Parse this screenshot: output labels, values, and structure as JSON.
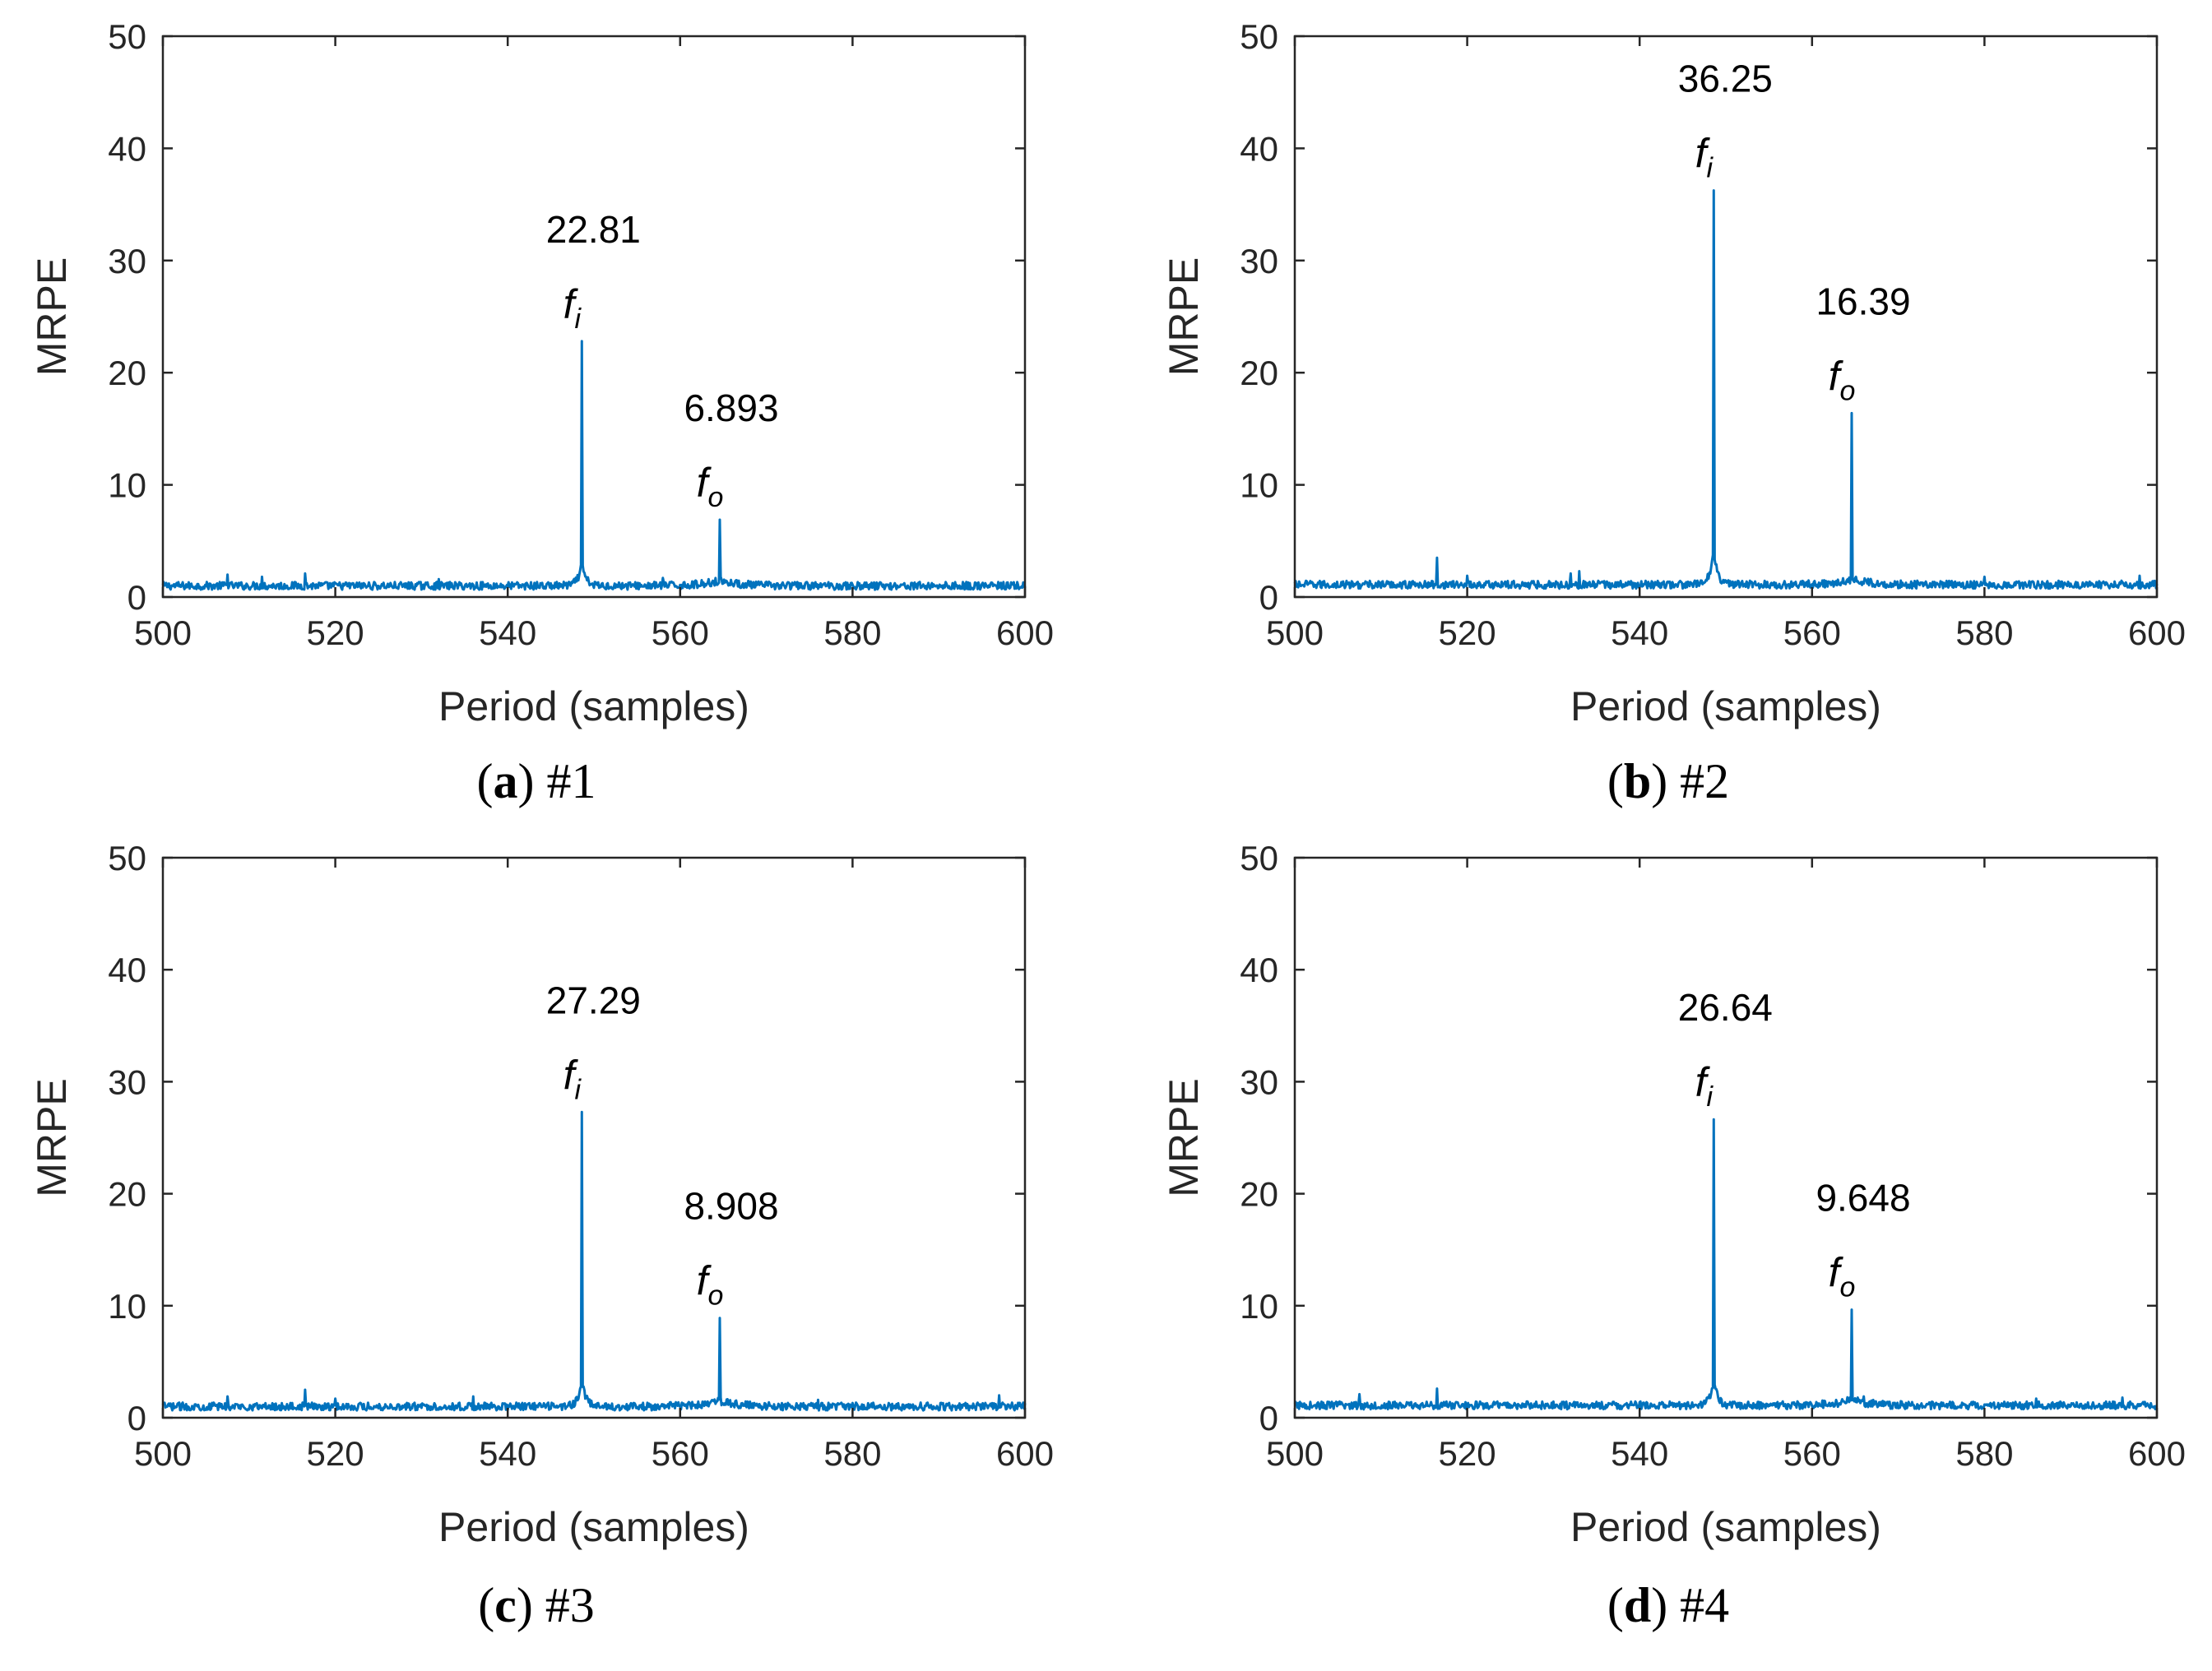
{
  "colors": {
    "series": "#0072BD",
    "axis": "#262626"
  },
  "chart_data": [
    {
      "type": "line",
      "caption_letter": "a",
      "caption_text": "#1",
      "xlabel": "Period (samples)",
      "ylabel": "MRPE",
      "xlim": [
        500,
        600
      ],
      "ylim": [
        0,
        50
      ],
      "xticks": [
        "500",
        "520",
        "540",
        "560",
        "580",
        "600"
      ],
      "yticks": [
        "0",
        "10",
        "20",
        "30",
        "40",
        "50"
      ],
      "baseline": 1.0,
      "fi": {
        "x": 548.6,
        "y": 22.81,
        "label": "22.81",
        "symbol": "f",
        "sub": "i"
      },
      "fo": {
        "x": 564.6,
        "y": 6.893,
        "label": "6.893",
        "symbol": "f",
        "sub": "o"
      },
      "spikes": [
        [
          507.5,
          2.0
        ],
        [
          511.5,
          1.8
        ],
        [
          516.5,
          2.1
        ],
        [
          532,
          1.6
        ],
        [
          558,
          1.7
        ]
      ]
    },
    {
      "type": "line",
      "caption_letter": "b",
      "caption_text": "#2",
      "xlabel": "Period (samples)",
      "ylabel": "MRPE",
      "xlim": [
        500,
        600
      ],
      "ylim": [
        0,
        50
      ],
      "xticks": [
        "500",
        "520",
        "540",
        "560",
        "580",
        "600"
      ],
      "yticks": [
        "0",
        "10",
        "20",
        "30",
        "40",
        "50"
      ],
      "baseline": 1.1,
      "fi": {
        "x": 548.6,
        "y": 36.25,
        "label": "36.25",
        "symbol": "f",
        "sub": "i"
      },
      "fo": {
        "x": 564.6,
        "y": 16.39,
        "label": "16.39",
        "symbol": "f",
        "sub": "o"
      },
      "spikes": [
        [
          516.5,
          3.5
        ],
        [
          520,
          1.9
        ],
        [
          532,
          2.1
        ],
        [
          533,
          2.3
        ],
        [
          580,
          1.8
        ],
        [
          598,
          1.9
        ]
      ]
    },
    {
      "type": "line",
      "caption_letter": "c",
      "caption_text": "#3",
      "xlabel": "Period (samples)",
      "ylabel": "MRPE",
      "xlim": [
        500,
        600
      ],
      "ylim": [
        0,
        50
      ],
      "xticks": [
        "500",
        "520",
        "540",
        "560",
        "580",
        "600"
      ],
      "yticks": [
        "0",
        "10",
        "20",
        "30",
        "40",
        "50"
      ],
      "baseline": 1.0,
      "fi": {
        "x": 548.6,
        "y": 27.29,
        "label": "27.29",
        "symbol": "f",
        "sub": "i"
      },
      "fo": {
        "x": 564.6,
        "y": 8.908,
        "label": "8.908",
        "symbol": "f",
        "sub": "o"
      },
      "spikes": [
        [
          507.5,
          1.9
        ],
        [
          516.5,
          2.5
        ],
        [
          520,
          1.7
        ],
        [
          536,
          1.9
        ],
        [
          576,
          1.6
        ],
        [
          597,
          2.0
        ]
      ]
    },
    {
      "type": "line",
      "caption_letter": "d",
      "caption_text": "#4",
      "xlabel": "Period (samples)",
      "ylabel": "MRPE",
      "xlim": [
        500,
        600
      ],
      "ylim": [
        0,
        50
      ],
      "xticks": [
        "500",
        "520",
        "540",
        "560",
        "580",
        "600"
      ],
      "yticks": [
        "0",
        "10",
        "20",
        "30",
        "40",
        "50"
      ],
      "baseline": 1.1,
      "fi": {
        "x": 548.6,
        "y": 26.64,
        "label": "26.64",
        "symbol": "f",
        "sub": "i"
      },
      "fo": {
        "x": 564.6,
        "y": 9.648,
        "label": "9.648",
        "symbol": "f",
        "sub": "o"
      },
      "spikes": [
        [
          507.5,
          2.1
        ],
        [
          516.5,
          2.6
        ],
        [
          566,
          1.9
        ],
        [
          586,
          1.7
        ],
        [
          596,
          1.8
        ]
      ]
    }
  ]
}
